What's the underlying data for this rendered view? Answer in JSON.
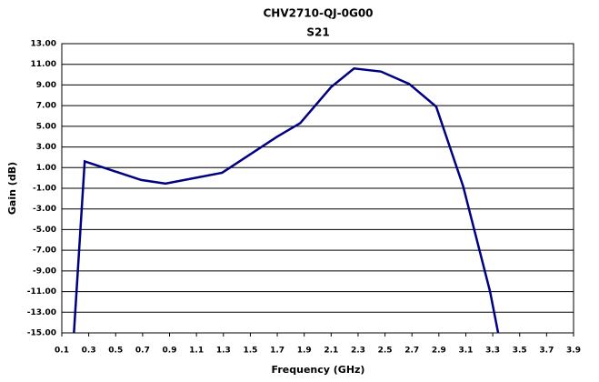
{
  "chart_data": {
    "type": "line",
    "title": "CHV2710-QJ-0G00",
    "subtitle": "S21",
    "x_label": "Frequency (GHz)",
    "y_label": "Gain (dB)",
    "xlim": [
      0.1,
      3.9
    ],
    "xticks": [
      0.1,
      0.3,
      0.5,
      0.7,
      0.9,
      1.1,
      1.3,
      1.5,
      1.7,
      1.9,
      2.1,
      2.3,
      2.5,
      2.7,
      2.9,
      3.1,
      3.3,
      3.5,
      3.7,
      3.9
    ],
    "ylim": [
      -15,
      13
    ],
    "yticks": [
      {
        "value": -15,
        "label": "-15.00"
      },
      {
        "value": -13,
        "label": "-13.00"
      },
      {
        "value": -11,
        "label": "-11.00"
      },
      {
        "value": -9,
        "label": "-9.00"
      },
      {
        "value": -7,
        "label": "-7.00"
      },
      {
        "value": -5,
        "label": "-5.00"
      },
      {
        "value": -3,
        "label": "-3.00"
      },
      {
        "value": -1,
        "label": "-1.00"
      },
      {
        "value": 1,
        "label": "1.00"
      },
      {
        "value": 3,
        "label": "3.00"
      },
      {
        "value": 5,
        "label": "5.00"
      },
      {
        "value": 7,
        "label": "7.00"
      },
      {
        "value": 9,
        "label": "9.00"
      },
      {
        "value": 11,
        "label": "11.00"
      },
      {
        "value": 13,
        "label": "13.00"
      }
    ],
    "grid": true,
    "x": [
      0.19,
      0.27,
      0.69,
      0.87,
      1.29,
      1.7,
      1.87,
      2.1,
      2.27,
      2.47,
      2.68,
      2.88,
      3.08,
      3.28,
      3.34
    ],
    "series": [
      {
        "color": "#000080",
        "values": [
          -15,
          1.6,
          -0.2,
          -0.55,
          0.5,
          4,
          5.3,
          8.8,
          10.6,
          10.3,
          9.1,
          6.9,
          -0.8,
          -11,
          -15
        ]
      }
    ]
  }
}
